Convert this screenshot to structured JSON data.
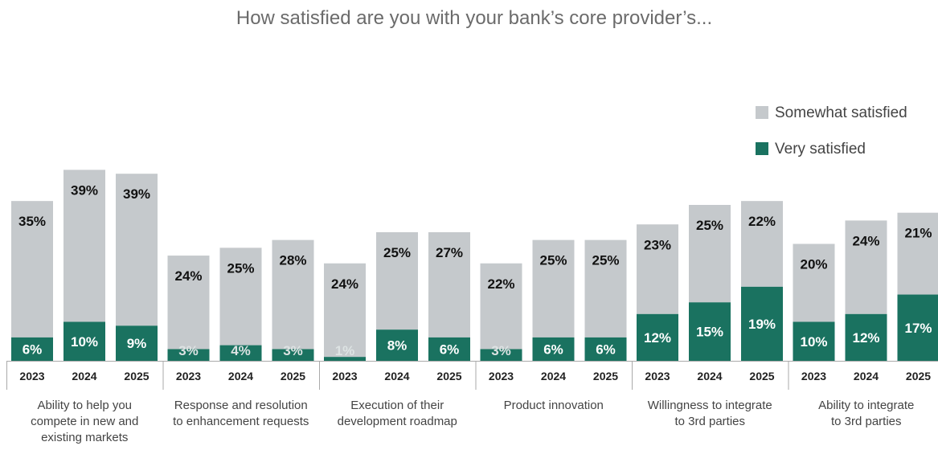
{
  "colors": {
    "somewhat": "#c5c9cc",
    "very": "#1a7260",
    "title": "#6b6b6b",
    "label": "#444444",
    "axis": "#aaaaaa",
    "value_dark": "#111111",
    "value_light": "#ffffff",
    "value_faint": "#dde3e3"
  },
  "chart_data": {
    "type": "bar",
    "stacked": true,
    "title": "How satisfied are you with your bank’s core provider’s...",
    "legend": [
      "Somewhat satisfied",
      "Very satisfied"
    ],
    "legend_position": "top-right",
    "years": [
      "2023",
      "2024",
      "2025"
    ],
    "value_suffix": "%",
    "groups": [
      {
        "category": "Ability to help you compete in new and existing markets",
        "category_lines": [
          "Ability to help you",
          "compete in new and",
          "existing markets"
        ],
        "very": [
          6,
          10,
          9
        ],
        "somewhat": [
          35,
          39,
          39
        ]
      },
      {
        "category": "Response and resolution to enhancement requests",
        "category_lines": [
          "Response and resolution",
          "to enhancement requests"
        ],
        "very": [
          3,
          4,
          3
        ],
        "somewhat": [
          24,
          25,
          28
        ]
      },
      {
        "category": "Execution of their development roadmap",
        "category_lines": [
          "Execution of their",
          "development roadmap"
        ],
        "very": [
          1,
          8,
          6
        ],
        "somewhat": [
          24,
          25,
          27
        ]
      },
      {
        "category": "Product innovation",
        "category_lines": [
          "Product innovation"
        ],
        "very": [
          3,
          6,
          6
        ],
        "somewhat": [
          22,
          25,
          25
        ]
      },
      {
        "category": "Willingness to integrate to 3rd parties",
        "category_lines": [
          "Willingness to integrate",
          "to 3rd parties"
        ],
        "very": [
          12,
          15,
          19
        ],
        "somewhat": [
          23,
          25,
          22
        ]
      },
      {
        "category": "Ability to integrate to 3rd parties",
        "category_lines": [
          "Ability to integrate",
          "to 3rd parties"
        ],
        "very": [
          10,
          12,
          17
        ],
        "somewhat": [
          20,
          24,
          21
        ]
      }
    ]
  }
}
